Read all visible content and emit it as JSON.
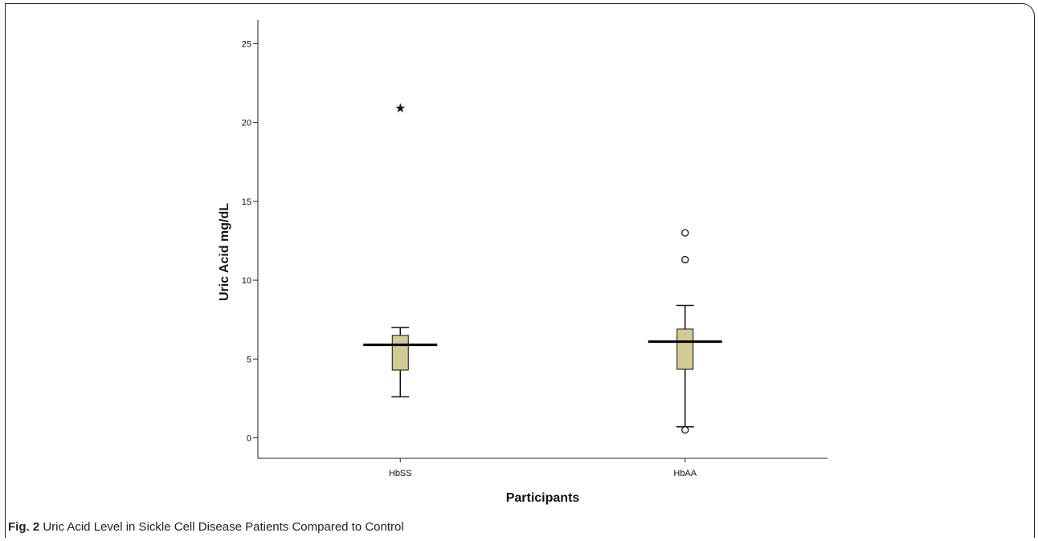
{
  "chart_data": {
    "type": "box",
    "xlabel": "Participants",
    "ylabel": "Uric Acid mg/dL",
    "ylim": [
      -1.3,
      26.5
    ],
    "yticks": [
      0,
      5,
      10,
      15,
      20,
      25
    ],
    "categories": [
      "HbSS",
      "HbAA"
    ],
    "box_color": "#d4ca96",
    "boxes": [
      {
        "name": "HbSS",
        "whisker_low": 2.6,
        "q1": 4.3,
        "median": 5.9,
        "q3": 6.5,
        "whisker_high": 7.0,
        "outliers": [],
        "extremes": [
          21.0
        ]
      },
      {
        "name": "HbAA",
        "whisker_low": 0.7,
        "q1": 4.35,
        "median": 6.1,
        "q3": 6.9,
        "whisker_high": 8.4,
        "outliers": [
          13.0,
          11.3,
          0.5
        ],
        "extremes": []
      }
    ]
  },
  "caption": {
    "label": "Fig. 2",
    "text": "Uric Acid Level in Sickle Cell Disease Patients Compared to Control"
  }
}
